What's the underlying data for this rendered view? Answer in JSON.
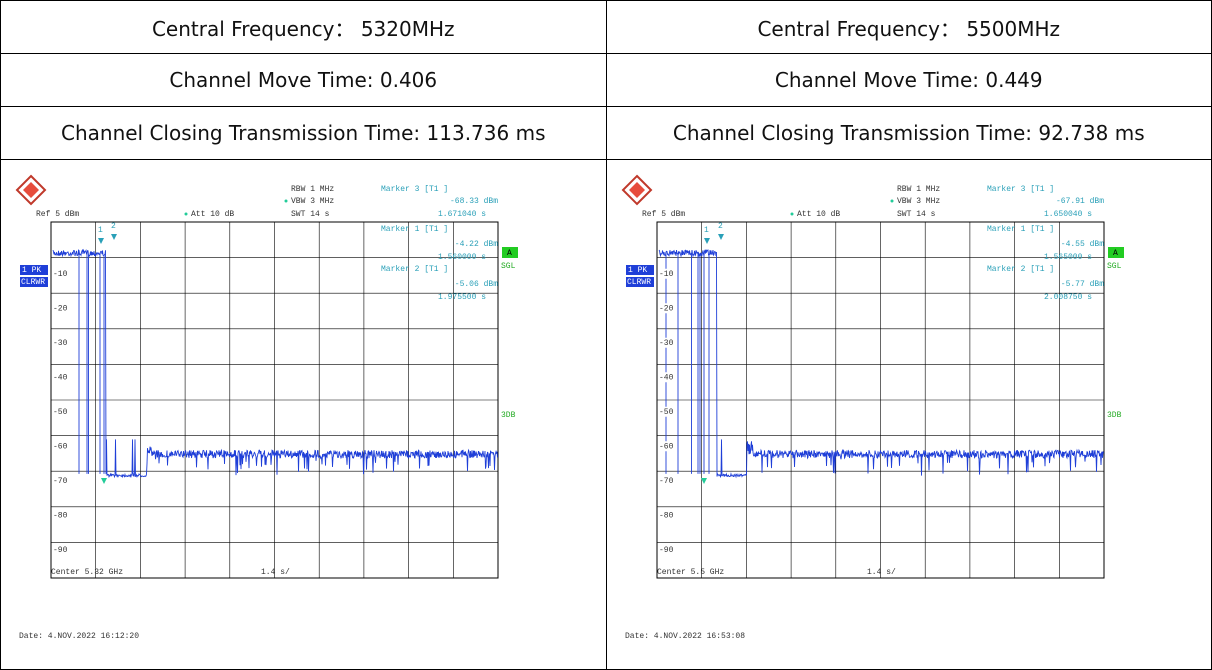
{
  "table": {
    "rows": [
      [
        "Central Frequency： 5320MHz",
        "Central Frequency： 5500MHz"
      ],
      [
        "Channel Move Time: 0.406",
        "Channel Move Time: 0.449"
      ],
      [
        "Channel Closing Transmission Time: 113.736 ms",
        "Channel Closing Transmission Time: 92.738 ms"
      ]
    ]
  },
  "screens": [
    {
      "ref": "Ref  5 dBm",
      "att": "Att  10 dB",
      "rbw": "RBW  1 MHz",
      "vbw": "VBW  3 MHz",
      "swt": "SWT  14 s",
      "markers": [
        {
          "label": "Marker 3 [T1 ]",
          "level": "-68.33 dBm",
          "time": "1.671040 s"
        },
        {
          "label": "Marker 1 [T1 ]",
          "level": "-4.22 dBm",
          "time": "1.560000 s"
        },
        {
          "label": "Marker 2 [T1 ]",
          "level": "-5.06 dBm",
          "time": "1.975500 s"
        }
      ],
      "marker_numbers": [
        "1",
        "2"
      ],
      "levels": [
        "-10",
        "-20",
        "-30",
        "-40",
        "-50",
        "-60",
        "-70",
        "-80",
        "-90"
      ],
      "trace_labels": [
        "1 PK",
        "CLRWR"
      ],
      "side_labels": [
        "A",
        "SGL",
        "3DB"
      ],
      "center": "Center 5.32 GHz",
      "span": "1.4 s/",
      "date": "Date: 4.NOV.2022  16:12:20"
    },
    {
      "ref": "Ref  5 dBm",
      "att": "Att  10 dB",
      "rbw": "RBW  1 MHz",
      "vbw": "VBW  3 MHz",
      "swt": "SWT  14 s",
      "markers": [
        {
          "label": "Marker 3 [T1 ]",
          "level": "-67.91 dBm",
          "time": "1.650040 s"
        },
        {
          "label": "Marker 1 [T1 ]",
          "level": "-4.55 dBm",
          "time": "1.565000 s"
        },
        {
          "label": "Marker 2 [T1 ]",
          "level": "-5.77 dBm",
          "time": "2.008750 s"
        }
      ],
      "marker_numbers": [
        "1",
        "2"
      ],
      "levels": [
        "-10",
        "-20",
        "-30",
        "-40",
        "-50",
        "-60",
        "-70",
        "-80",
        "-90"
      ],
      "trace_labels": [
        "1 PK",
        "CLRWR"
      ],
      "side_labels": [
        "A",
        "SGL",
        "3DB"
      ],
      "center": "Center 5.5 GHz",
      "span": "1.4 s/",
      "date": "Date: 4.NOV.2022  16:53:08"
    }
  ]
}
